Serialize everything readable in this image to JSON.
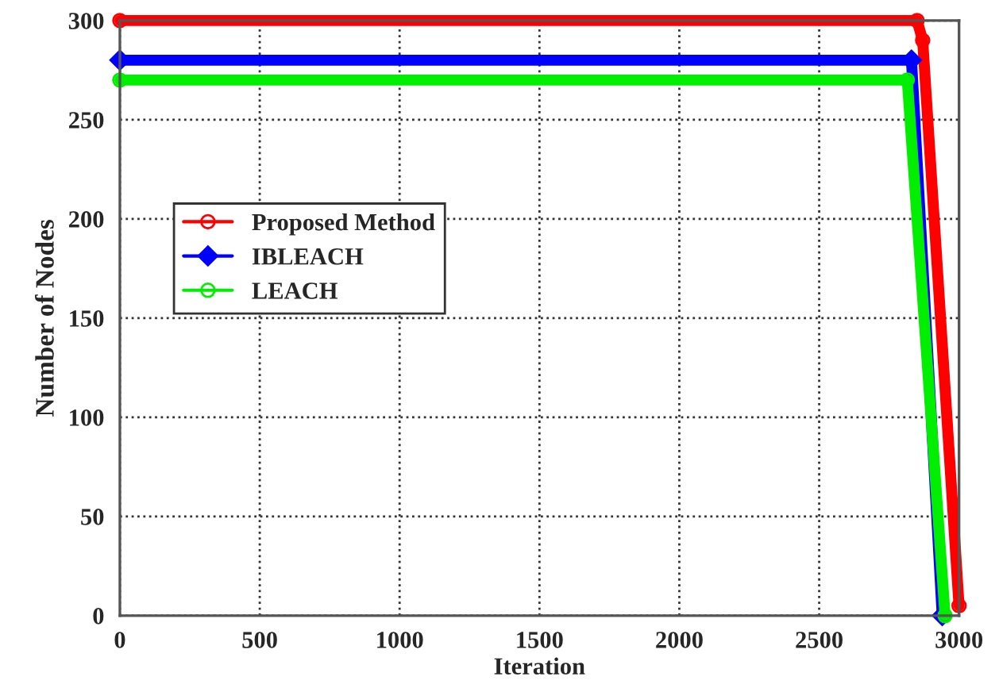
{
  "chart_data": {
    "type": "line",
    "xlabel": "Iteration",
    "ylabel": "Number of Nodes",
    "xlim": [
      0,
      3000
    ],
    "xticks": [
      0,
      500,
      1000,
      1500,
      2000,
      2500,
      3000
    ],
    "ylim": [
      0,
      300
    ],
    "yticks": [
      0,
      50,
      100,
      150,
      200,
      250,
      300
    ],
    "grid": true,
    "legend": "left",
    "series": [
      {
        "name": "Proposed Method",
        "color": "#ff0000",
        "marker": "circle",
        "x": [
          0,
          2850,
          2870,
          3000
        ],
        "values": [
          300,
          300,
          290,
          5
        ]
      },
      {
        "name": "IBLEACH",
        "color": "#0000ff",
        "marker": "diamond",
        "x": [
          0,
          2830,
          2940
        ],
        "values": [
          280,
          280,
          0
        ]
      },
      {
        "name": "LEACH",
        "color": "#00ee00",
        "marker": "circle",
        "x": [
          0,
          2815,
          2950
        ],
        "values": [
          270,
          270,
          0
        ]
      }
    ]
  }
}
